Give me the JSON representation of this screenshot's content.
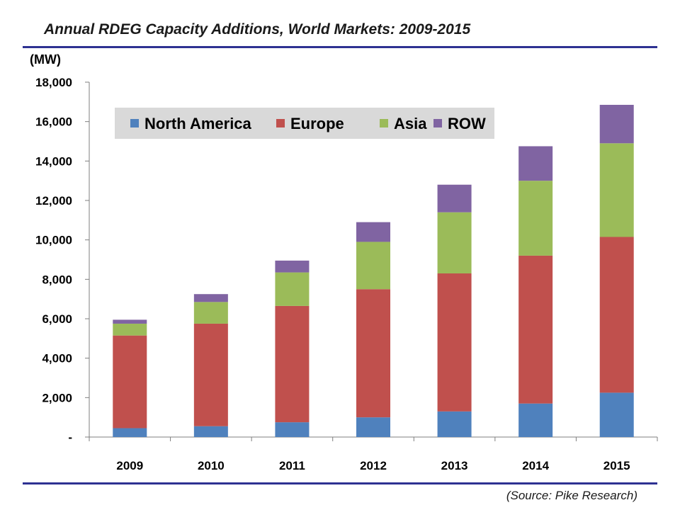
{
  "page": {
    "title": "Annual RDEG Capacity Additions, World Markets: 2009-2015",
    "unit_label": "(MW)",
    "source": "(Source: Pike Research)"
  },
  "colors": {
    "north_america": "#4f81bd",
    "europe": "#c0504d",
    "asia": "#9bbb59",
    "row": "#8064a2",
    "rule": "#2e3192",
    "legend_bg": "#d9d9d9"
  },
  "chart_data": {
    "type": "bar",
    "stacked": true,
    "title": "Annual RDEG Capacity Additions, World Markets: 2009-2015",
    "xlabel": "",
    "ylabel": "(MW)",
    "ylim": [
      0,
      18000
    ],
    "yticks": [
      0,
      2000,
      4000,
      6000,
      8000,
      10000,
      12000,
      14000,
      16000,
      18000
    ],
    "ytick_labels": [
      "-",
      "2,000",
      "4,000",
      "6,000",
      "8,000",
      "10,000",
      "12,000",
      "14,000",
      "16,000",
      "18,000"
    ],
    "categories": [
      "2009",
      "2010",
      "2011",
      "2012",
      "2013",
      "2014",
      "2015"
    ],
    "legend_position": "top-left",
    "grid": false,
    "series": [
      {
        "name": "North America",
        "color": "#4f81bd",
        "values": [
          450,
          550,
          750,
          1000,
          1300,
          1700,
          2250
        ]
      },
      {
        "name": "Europe",
        "color": "#c0504d",
        "values": [
          4700,
          5200,
          5900,
          6500,
          7000,
          7500,
          7900
        ]
      },
      {
        "name": "Asia",
        "color": "#9bbb59",
        "values": [
          600,
          1100,
          1700,
          2400,
          3100,
          3800,
          4750
        ]
      },
      {
        "name": "ROW",
        "color": "#8064a2",
        "values": [
          200,
          400,
          600,
          1000,
          1400,
          1750,
          1950
        ]
      }
    ]
  }
}
